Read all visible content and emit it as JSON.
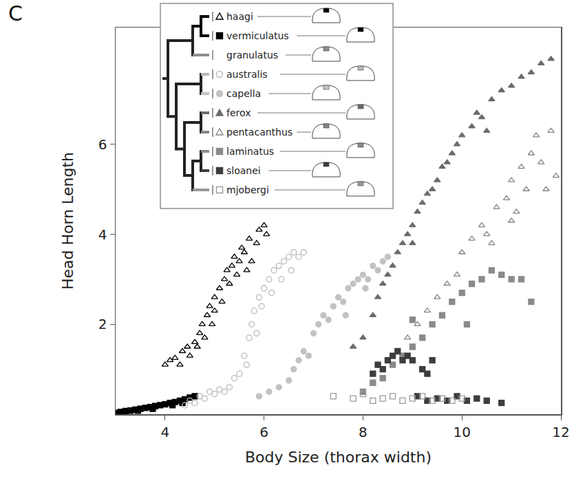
{
  "panel_label": "C",
  "chart_data": {
    "type": "scatter",
    "x_label": "Body Size (thorax width)",
    "y_label": "Head Horn Length",
    "xlim": [
      3,
      12
    ],
    "ylim": [
      0,
      8.6
    ],
    "xticks": [
      4,
      6,
      8,
      10,
      12
    ],
    "yticks": [
      2,
      4,
      6
    ],
    "legend": "top left",
    "tree": [
      [
        [
          "haagi",
          "vermiculatus"
        ],
        "granulatus"
      ],
      [
        [
          "australis",
          "capella"
        ],
        [
          [
            "ferox",
            "pentacanthus"
          ],
          [
            [
              "laminatus",
              "sloanei"
            ],
            "mjobergi"
          ]
        ]
      ]
    ],
    "series": [
      {
        "name": "haagi",
        "color": "#000000",
        "marker": "triangle-up-open",
        "x": [
          4.0,
          4.1,
          4.2,
          4.3,
          4.35,
          4.45,
          4.5,
          4.6,
          4.7,
          4.75,
          4.8,
          4.85,
          4.9,
          5.0,
          5.0,
          5.1,
          5.15,
          5.2,
          5.25,
          5.3,
          5.35,
          5.4,
          5.45,
          5.5,
          5.55,
          5.6,
          5.7,
          5.75,
          5.85,
          5.9,
          6.0,
          6.05,
          5.65,
          4.95,
          4.65
        ],
        "y": [
          1.1,
          1.2,
          1.25,
          1.1,
          1.4,
          1.5,
          1.3,
          1.6,
          1.8,
          2.0,
          1.7,
          2.2,
          2.4,
          2.3,
          2.6,
          2.8,
          2.5,
          3.0,
          3.2,
          2.9,
          3.3,
          3.5,
          3.1,
          3.4,
          3.7,
          3.6,
          3.9,
          3.4,
          3.8,
          4.1,
          4.2,
          4.0,
          3.2,
          2.0,
          1.5
        ]
      },
      {
        "name": "vermiculatus",
        "color": "#000000",
        "marker": "square",
        "x": [
          3.0,
          3.1,
          3.2,
          3.3,
          3.4,
          3.5,
          3.6,
          3.7,
          3.8,
          3.9,
          4.0,
          4.1,
          4.2,
          4.3,
          4.4,
          4.5,
          4.6,
          3.45,
          3.75,
          4.15,
          4.35
        ],
        "y": [
          0.03,
          0.05,
          0.07,
          0.08,
          0.1,
          0.12,
          0.14,
          0.16,
          0.18,
          0.2,
          0.22,
          0.25,
          0.27,
          0.3,
          0.33,
          0.37,
          0.4,
          0.08,
          0.12,
          0.2,
          0.25
        ]
      },
      {
        "name": "granulatus",
        "color": "#8c8c8c",
        "marker": "none",
        "x": [],
        "y": []
      },
      {
        "name": "australis",
        "color": "#b8b8b8",
        "marker": "circle-open",
        "x": [
          4.4,
          4.5,
          4.6,
          4.7,
          4.8,
          4.9,
          5.0,
          5.1,
          5.2,
          5.3,
          5.4,
          5.5,
          5.6,
          5.7,
          5.75,
          5.8,
          5.85,
          5.9,
          5.95,
          6.0,
          6.1,
          6.15,
          6.2,
          6.3,
          6.35,
          6.4,
          6.5,
          6.55,
          6.6,
          6.7,
          6.8,
          5.65
        ],
        "y": [
          0.2,
          0.3,
          0.25,
          0.4,
          0.35,
          0.5,
          0.45,
          0.55,
          0.5,
          0.6,
          0.8,
          0.9,
          1.3,
          1.7,
          2.0,
          2.3,
          1.8,
          2.6,
          2.4,
          2.8,
          3.0,
          2.7,
          3.2,
          3.3,
          3.0,
          3.4,
          3.5,
          3.2,
          3.6,
          3.5,
          3.6,
          1.1
        ]
      },
      {
        "name": "capella",
        "color": "#c2c2c2",
        "marker": "circle",
        "x": [
          5.9,
          6.1,
          6.3,
          6.5,
          6.6,
          6.7,
          6.8,
          6.9,
          7.0,
          7.1,
          7.2,
          7.3,
          7.4,
          7.5,
          7.6,
          7.7,
          7.8,
          7.9,
          8.0,
          8.1,
          8.2,
          8.3,
          8.4,
          8.5,
          7.65,
          8.05
        ],
        "y": [
          0.4,
          0.5,
          0.6,
          0.75,
          1.0,
          1.2,
          1.4,
          1.3,
          1.8,
          2.0,
          2.2,
          2.1,
          2.4,
          2.6,
          2.5,
          2.8,
          2.9,
          3.0,
          3.1,
          3.0,
          3.3,
          3.2,
          3.4,
          3.5,
          2.2,
          2.8
        ]
      },
      {
        "name": "ferox",
        "color": "#6b6b6b",
        "marker": "triangle-up",
        "x": [
          7.8,
          8.0,
          8.2,
          8.3,
          8.4,
          8.5,
          8.6,
          8.7,
          8.8,
          8.9,
          9.0,
          9.1,
          9.2,
          9.3,
          9.4,
          9.5,
          9.6,
          9.7,
          9.8,
          9.9,
          10.0,
          10.2,
          10.3,
          10.4,
          10.6,
          10.8,
          11.0,
          11.2,
          11.4,
          11.6,
          11.8,
          10.5,
          9.0
        ],
        "y": [
          1.5,
          1.7,
          2.2,
          2.6,
          2.9,
          3.1,
          3.3,
          3.6,
          3.8,
          4.0,
          4.2,
          4.5,
          4.7,
          4.9,
          5.0,
          5.2,
          5.5,
          5.6,
          5.8,
          6.0,
          6.2,
          6.4,
          6.7,
          6.6,
          7.0,
          7.2,
          7.3,
          7.5,
          7.6,
          7.8,
          7.9,
          6.3,
          3.8
        ]
      },
      {
        "name": "pentacanthus",
        "color": "#858585",
        "marker": "triangle-up-open",
        "x": [
          8.9,
          9.1,
          9.3,
          9.5,
          9.7,
          9.9,
          10.0,
          10.2,
          10.4,
          10.5,
          10.7,
          10.9,
          11.0,
          11.1,
          11.2,
          11.3,
          11.4,
          11.5,
          11.6,
          11.7,
          11.8,
          11.9,
          10.6,
          11.0
        ],
        "y": [
          1.7,
          2.0,
          2.3,
          2.6,
          2.9,
          3.1,
          3.6,
          3.9,
          4.2,
          4.0,
          4.6,
          4.8,
          5.2,
          4.5,
          5.5,
          5.0,
          5.8,
          6.2,
          5.6,
          5.0,
          6.3,
          5.3,
          3.8,
          4.3
        ]
      },
      {
        "name": "laminatus",
        "color": "#8a8a8a",
        "marker": "square",
        "x": [
          8.0,
          8.2,
          8.4,
          8.6,
          8.8,
          9.0,
          9.2,
          9.4,
          9.6,
          9.8,
          10.0,
          10.2,
          10.4,
          10.6,
          10.8,
          11.0,
          11.2,
          11.4,
          10.1,
          9.0
        ],
        "y": [
          0.5,
          0.7,
          0.8,
          1.1,
          1.3,
          1.5,
          1.7,
          2.0,
          2.2,
          2.5,
          2.7,
          2.9,
          3.0,
          3.2,
          3.1,
          3.0,
          3.0,
          2.5,
          2.0,
          2.1
        ]
      },
      {
        "name": "sloanei",
        "color": "#3d3d3d",
        "marker": "square",
        "x": [
          8.2,
          8.3,
          8.4,
          8.5,
          8.6,
          8.7,
          8.8,
          8.9,
          9.0,
          9.2,
          9.3,
          9.4,
          9.1,
          9.3,
          9.5,
          9.7,
          9.9,
          10.1,
          10.3,
          10.5,
          10.8
        ],
        "y": [
          0.9,
          1.1,
          1.0,
          1.2,
          1.3,
          1.4,
          1.2,
          1.3,
          1.2,
          1.0,
          0.9,
          1.2,
          0.4,
          0.3,
          0.35,
          0.3,
          0.4,
          0.3,
          0.35,
          0.3,
          0.25
        ]
      },
      {
        "name": "mjobergi",
        "color": "#999999",
        "marker": "square-open",
        "x": [
          7.4,
          7.8,
          8.0,
          8.2,
          8.4,
          8.6,
          8.8,
          9.0,
          9.2,
          9.4,
          9.6,
          9.8,
          10.0
        ],
        "y": [
          0.4,
          0.35,
          0.45,
          0.3,
          0.35,
          0.4,
          0.3,
          0.35,
          0.4,
          0.3,
          0.35,
          0.3,
          0.35
        ]
      }
    ]
  }
}
